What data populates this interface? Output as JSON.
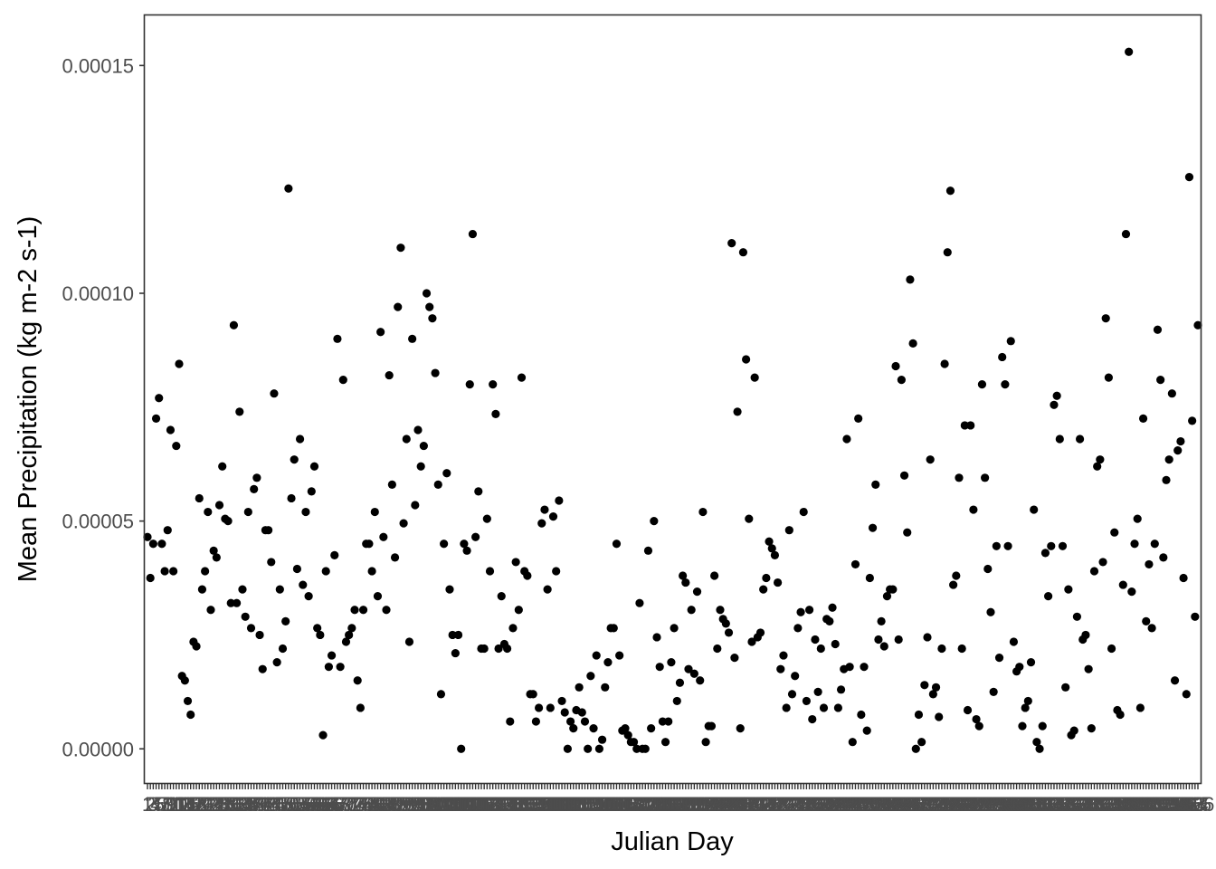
{
  "chart_data": {
    "type": "scatter",
    "xlabel": "Julian Day",
    "ylabel": "Mean Precipitation (kg m-2 s-1)",
    "x_range": [
      1,
      366
    ],
    "ylim": [
      -7.5e-06,
      0.000161
    ],
    "y_ticks": [
      0,
      5e-05,
      0.0001,
      0.00015
    ],
    "y_tick_labels": [
      "0.00000",
      "0.00005",
      "0.00010",
      "0.00015"
    ],
    "x_tick_label_note": "Every day 1-366 is a tick; labels overlap into an illegible band",
    "x_tick_labels": [
      "1",
      "2",
      "3",
      "4",
      "5",
      "6",
      "7",
      "8",
      "9",
      "10",
      "11",
      "12",
      "13",
      "14",
      "15",
      "16",
      "17",
      "18",
      "19",
      "20",
      "21",
      "22",
      "23",
      "24",
      "25",
      "26",
      "27",
      "28",
      "29",
      "30",
      "31",
      "32",
      "33",
      "34",
      "35",
      "36",
      "37",
      "38",
      "39",
      "40",
      "41",
      "42",
      "43",
      "44",
      "45",
      "46",
      "47",
      "48",
      "49",
      "50",
      "51",
      "52",
      "53",
      "54",
      "55",
      "56",
      "57",
      "58",
      "59",
      "60",
      "61",
      "62",
      "63",
      "64",
      "65",
      "66",
      "67",
      "68",
      "69",
      "70",
      "71",
      "72",
      "73",
      "74",
      "75",
      "76",
      "77",
      "78",
      "79",
      "80",
      "81",
      "82",
      "83",
      "84",
      "85",
      "86",
      "87",
      "88",
      "89",
      "90",
      "91",
      "92",
      "93",
      "94",
      "95",
      "96",
      "97",
      "98",
      "99",
      "100",
      "101",
      "102",
      "103",
      "104",
      "105",
      "106",
      "107",
      "108",
      "109",
      "110",
      "111",
      "112",
      "113",
      "114",
      "115",
      "116",
      "117",
      "118",
      "119",
      "120",
      "121",
      "122",
      "123",
      "124",
      "125",
      "126",
      "127",
      "128",
      "129",
      "130",
      "131",
      "132",
      "133",
      "134",
      "135",
      "136",
      "137",
      "138",
      "139",
      "140",
      "141",
      "142",
      "143",
      "144",
      "145",
      "146",
      "147",
      "148",
      "149",
      "150",
      "151",
      "152",
      "153",
      "154",
      "155",
      "156",
      "157",
      "158",
      "159",
      "160",
      "161",
      "162",
      "163",
      "164",
      "165",
      "166",
      "167",
      "168",
      "169",
      "170",
      "171",
      "172",
      "173",
      "174",
      "175",
      "176",
      "177",
      "178",
      "179",
      "180",
      "181",
      "182",
      "183",
      "184",
      "185",
      "186",
      "187",
      "188",
      "189",
      "190",
      "191",
      "192",
      "193",
      "194",
      "195",
      "196",
      "197",
      "198",
      "199",
      "200",
      "201",
      "202",
      "203",
      "204",
      "205",
      "206",
      "207",
      "208",
      "209",
      "210",
      "211",
      "212",
      "213",
      "214",
      "215",
      "216",
      "217",
      "218",
      "219",
      "220",
      "221",
      "222",
      "223",
      "224",
      "225",
      "226",
      "227",
      "228",
      "229",
      "230",
      "231",
      "232",
      "233",
      "234",
      "235",
      "236",
      "237",
      "238",
      "239",
      "240",
      "241",
      "242",
      "243",
      "244",
      "245",
      "246",
      "247",
      "248",
      "249",
      "250",
      "251",
      "252",
      "253",
      "254",
      "255",
      "256",
      "257",
      "258",
      "259",
      "260",
      "261",
      "262",
      "263",
      "264",
      "265",
      "266",
      "267",
      "268",
      "269",
      "270",
      "271",
      "272",
      "273",
      "274",
      "275",
      "276",
      "277",
      "278",
      "279",
      "280",
      "281",
      "282",
      "283",
      "284",
      "285",
      "286",
      "287",
      "288",
      "289",
      "290",
      "291",
      "292",
      "293",
      "294",
      "295",
      "296",
      "297",
      "298",
      "299",
      "300",
      "301",
      "302",
      "303",
      "304",
      "305",
      "306",
      "307",
      "308",
      "309",
      "310",
      "311",
      "312",
      "313",
      "314",
      "315",
      "316",
      "317",
      "318",
      "319",
      "320",
      "321",
      "322",
      "323",
      "324",
      "325",
      "326",
      "327",
      "328",
      "329",
      "330",
      "331",
      "332",
      "333",
      "334",
      "335",
      "336",
      "337",
      "338",
      "339",
      "340",
      "341",
      "342",
      "343",
      "344",
      "345",
      "346",
      "347",
      "348",
      "349",
      "350",
      "351",
      "352",
      "353",
      "354",
      "355",
      "356",
      "357",
      "358",
      "359",
      "360",
      "361",
      "362",
      "363",
      "364",
      "365",
      "366"
    ],
    "grid": false,
    "legend": "none",
    "point_color": "#000000",
    "series": [
      {
        "x": [
          1,
          2,
          3,
          4,
          5,
          6,
          7,
          8,
          9,
          10,
          11,
          12,
          13,
          14,
          15,
          16,
          17,
          18,
          19,
          20,
          21,
          22,
          23,
          24,
          25,
          26,
          27,
          28,
          29,
          30,
          31,
          32,
          33,
          34,
          35,
          36,
          37,
          38,
          39,
          40,
          41,
          42,
          43,
          44,
          45,
          46,
          47,
          48,
          49,
          50,
          51,
          52,
          53,
          54,
          55,
          56,
          57,
          58,
          59,
          60,
          61,
          62,
          63,
          64,
          65,
          66,
          67,
          68,
          69,
          70,
          71,
          72,
          73,
          74,
          75,
          76,
          77,
          78,
          79,
          80,
          81,
          82,
          83,
          84,
          85,
          86,
          87,
          88,
          89,
          90,
          91,
          92,
          93,
          94,
          95,
          96,
          97,
          98,
          99,
          100,
          101,
          102,
          103,
          104,
          105,
          106,
          107,
          108,
          109,
          110,
          111,
          112,
          113,
          114,
          115,
          116,
          117,
          118,
          119,
          120,
          121,
          122,
          123,
          124,
          125,
          126,
          127,
          128,
          129,
          130,
          131,
          132,
          133,
          134,
          135,
          136,
          137,
          138,
          139,
          140,
          141,
          142,
          143,
          144,
          145,
          146,
          147,
          148,
          149,
          150,
          151,
          152,
          153,
          154,
          155,
          156,
          157,
          158,
          159,
          160,
          161,
          162,
          163,
          164,
          165,
          166,
          167,
          168,
          169,
          170,
          171,
          172,
          173,
          174,
          175,
          176,
          177,
          178,
          179,
          180,
          181,
          182,
          183,
          184,
          185,
          186,
          187,
          188,
          189,
          190,
          191,
          192,
          193,
          194,
          195,
          196,
          197,
          198,
          199,
          200,
          201,
          202,
          203,
          204,
          205,
          206,
          207,
          208,
          209,
          210,
          211,
          212,
          213,
          214,
          215,
          216,
          217,
          218,
          219,
          220,
          221,
          222,
          223,
          224,
          225,
          226,
          227,
          228,
          229,
          230,
          231,
          232,
          233,
          234,
          235,
          236,
          237,
          238,
          239,
          240,
          241,
          242,
          243,
          244,
          245,
          246,
          247,
          248,
          249,
          250,
          251,
          252,
          253,
          254,
          255,
          256,
          257,
          258,
          259,
          260,
          261,
          262,
          263,
          264,
          265,
          266,
          267,
          268,
          269,
          270,
          271,
          272,
          273,
          274,
          275,
          276,
          277,
          278,
          279,
          280,
          281,
          282,
          283,
          284,
          285,
          286,
          287,
          288,
          289,
          290,
          291,
          292,
          293,
          294,
          295,
          296,
          297,
          298,
          299,
          300,
          301,
          302,
          303,
          304,
          305,
          306,
          307,
          308,
          309,
          310,
          311,
          312,
          313,
          314,
          315,
          316,
          317,
          318,
          319,
          320,
          321,
          322,
          323,
          324,
          325,
          326,
          327,
          328,
          329,
          330,
          331,
          332,
          333,
          334,
          335,
          336,
          337,
          338,
          339,
          340,
          341,
          342,
          343,
          344,
          345,
          346,
          347,
          348,
          349,
          350,
          351,
          352,
          353,
          354,
          355,
          356,
          357,
          358,
          359,
          360,
          361,
          362,
          363,
          364,
          365,
          366
        ],
        "y": [
          4.65e-05,
          3.75e-05,
          4.5e-05,
          7.25e-05,
          7.7e-05,
          4.5e-05,
          3.9e-05,
          4.8e-05,
          7e-05,
          3.9e-05,
          6.65e-05,
          8.45e-05,
          1.6e-05,
          1.5e-05,
          1.05e-05,
          7.5e-06,
          2.35e-05,
          2.25e-05,
          5.5e-05,
          3.5e-05,
          3.9e-05,
          5.2e-05,
          3.05e-05,
          4.35e-05,
          4.2e-05,
          5.35e-05,
          6.2e-05,
          5.05e-05,
          5e-05,
          3.2e-05,
          9.3e-05,
          3.2e-05,
          7.4e-05,
          3.5e-05,
          2.9e-05,
          5.2e-05,
          2.65e-05,
          5.7e-05,
          5.95e-05,
          2.5e-05,
          1.75e-05,
          4.8e-05,
          4.8e-05,
          4.1e-05,
          7.8e-05,
          1.9e-05,
          3.5e-05,
          2.2e-05,
          2.8e-05,
          0.000123,
          5.5e-05,
          6.35e-05,
          3.95e-05,
          6.8e-05,
          3.6e-05,
          5.2e-05,
          3.35e-05,
          5.65e-05,
          6.2e-05,
          2.65e-05,
          2.5e-05,
          3e-06,
          3.9e-05,
          1.8e-05,
          2.05e-05,
          4.25e-05,
          9e-05,
          1.8e-05,
          8.1e-05,
          2.35e-05,
          2.5e-05,
          2.65e-05,
          3.05e-05,
          1.5e-05,
          9e-06,
          3.05e-05,
          4.5e-05,
          4.5e-05,
          3.9e-05,
          5.2e-05,
          3.35e-05,
          9.15e-05,
          4.65e-05,
          3.05e-05,
          8.2e-05,
          5.8e-05,
          4.2e-05,
          9.7e-05,
          0.00011,
          4.95e-05,
          6.8e-05,
          2.35e-05,
          9e-05,
          5.35e-05,
          7e-05,
          6.2e-05,
          6.65e-05,
          0.0001,
          9.7e-05,
          9.45e-05,
          8.25e-05,
          5.8e-05,
          1.2e-05,
          4.5e-05,
          6.05e-05,
          3.5e-05,
          2.5e-05,
          2.1e-05,
          2.5e-05,
          0,
          4.5e-05,
          4.35e-05,
          8e-05,
          0.000113,
          4.65e-05,
          5.65e-05,
          2.2e-05,
          2.2e-05,
          5.05e-05,
          3.9e-05,
          8e-05,
          7.35e-05,
          2.2e-05,
          3.35e-05,
          2.3e-05,
          2.2e-05,
          6e-06,
          2.65e-05,
          4.1e-05,
          3.05e-05,
          8.15e-05,
          3.9e-05,
          3.8e-05,
          1.2e-05,
          1.2e-05,
          6e-06,
          9e-06,
          4.95e-05,
          5.25e-05,
          3.5e-05,
          9e-06,
          5.1e-05,
          3.9e-05,
          5.45e-05,
          1.05e-05,
          8e-06,
          0,
          6e-06,
          4.5e-06,
          8.5e-06,
          1.35e-05,
          8e-06,
          6e-06,
          0,
          1.6e-05,
          4.5e-06,
          2.05e-05,
          0,
          2e-06,
          1.35e-05,
          1.9e-05,
          2.65e-05,
          2.65e-05,
          4.5e-05,
          2.05e-05,
          4e-06,
          4.5e-06,
          3e-06,
          1.5e-06,
          1.5e-06,
          0,
          3.2e-05,
          0,
          0,
          4.35e-05,
          4.5e-06,
          5e-05,
          2.45e-05,
          1.8e-05,
          6e-06,
          1.5e-06,
          6e-06,
          1.9e-05,
          2.65e-05,
          1.05e-05,
          1.45e-05,
          3.8e-05,
          3.65e-05,
          1.75e-05,
          3.05e-05,
          1.65e-05,
          3.45e-05,
          1.5e-05,
          5.2e-05,
          1.5e-06,
          5e-06,
          5e-06,
          3.8e-05,
          2.2e-05,
          3.05e-05,
          2.85e-05,
          2.75e-05,
          2.55e-05,
          0.000111,
          2e-05,
          7.4e-05,
          4.5e-06,
          0.000109,
          8.55e-05,
          5.05e-05,
          2.35e-05,
          8.15e-05,
          2.45e-05,
          2.55e-05,
          3.5e-05,
          3.75e-05,
          4.55e-05,
          4.4e-05,
          4.25e-05,
          3.65e-05,
          1.75e-05,
          2.05e-05,
          9e-06,
          4.8e-05,
          1.2e-05,
          1.6e-05,
          2.65e-05,
          3e-05,
          5.2e-05,
          1.05e-05,
          3.05e-05,
          6.5e-06,
          2.4e-05,
          1.25e-05,
          2.2e-05,
          9e-06,
          2.85e-05,
          2.8e-05,
          3.1e-05,
          2.3e-05,
          9e-06,
          1.3e-05,
          1.75e-05,
          6.8e-05,
          1.8e-05,
          1.5e-06,
          4.05e-05,
          7.25e-05,
          7.5e-06,
          1.8e-05,
          4e-06,
          3.75e-05,
          4.85e-05,
          5.8e-05,
          2.4e-05,
          2.8e-05,
          2.25e-05,
          3.35e-05,
          3.5e-05,
          3.5e-05,
          8.4e-05,
          2.4e-05,
          8.1e-05,
          6e-05,
          4.75e-05,
          0.000103,
          8.9e-05,
          0,
          7.5e-06,
          1.5e-06,
          1.4e-05,
          2.45e-05,
          6.35e-05,
          1.2e-05,
          1.35e-05,
          7e-06,
          2.2e-05,
          8.45e-05,
          0.000109,
          0.0001225,
          3.6e-05,
          3.8e-05,
          5.95e-05,
          2.2e-05,
          7.1e-05,
          8.5e-06,
          7.1e-05,
          5.25e-05,
          6.5e-06,
          5e-06,
          8e-05,
          5.95e-05,
          3.95e-05,
          3e-05,
          1.25e-05,
          4.45e-05,
          2e-05,
          8.6e-05,
          8e-05,
          4.45e-05,
          8.95e-05,
          2.35e-05,
          1.7e-05,
          1.8e-05,
          5e-06,
          9e-06,
          1.05e-05,
          1.9e-05,
          5.25e-05,
          1.5e-06,
          0,
          5e-06,
          4.3e-05,
          3.35e-05,
          4.45e-05,
          7.55e-05,
          7.75e-05,
          6.8e-05,
          4.45e-05,
          1.35e-05,
          3.5e-05,
          3e-06,
          4e-06,
          2.9e-05,
          6.8e-05,
          2.4e-05,
          2.5e-05,
          1.75e-05,
          4.5e-06,
          3.9e-05,
          6.2e-05,
          6.35e-05,
          4.1e-05,
          9.45e-05,
          8.15e-05,
          2.2e-05,
          4.75e-05,
          8.5e-06,
          7.5e-06,
          3.6e-05,
          0.000113,
          0.000153,
          3.45e-05,
          4.5e-05,
          5.05e-05,
          9e-06,
          7.25e-05,
          2.8e-05,
          4.05e-05,
          2.65e-05,
          4.5e-05,
          9.2e-05,
          8.1e-05,
          4.2e-05,
          5.9e-05,
          6.35e-05,
          7.8e-05,
          1.5e-05,
          6.55e-05,
          6.75e-05,
          3.75e-05,
          1.2e-05,
          0.0001255,
          7.2e-05,
          2.9e-05,
          9.3e-05
        ]
      }
    ]
  }
}
